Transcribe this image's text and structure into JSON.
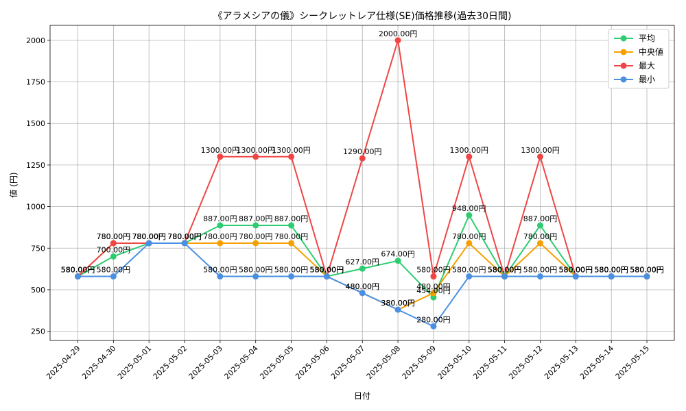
{
  "chart_data": {
    "type": "line",
    "title": "《アラメシアの儀》シークレットレア仕様(SE)価格推移(過去30日間)",
    "xlabel": "日付",
    "ylabel": "値 (円)",
    "categories": [
      "2025-04-29",
      "2025-04-30",
      "2025-05-01",
      "2025-05-02",
      "2025-05-03",
      "2025-05-04",
      "2025-05-05",
      "2025-05-06",
      "2025-05-07",
      "2025-05-08",
      "2025-05-09",
      "2025-05-10",
      "2025-05-11",
      "2025-05-12",
      "2025-05-13",
      "2025-05-14",
      "2025-05-15"
    ],
    "ylim": [
      195,
      2090
    ],
    "yticks": [
      250,
      500,
      750,
      1000,
      1250,
      1500,
      1750,
      2000
    ],
    "grid": true,
    "legend_position": "top-right",
    "series": [
      {
        "name": "平均",
        "color": "#2ecc71",
        "values": [
          580,
          700,
          780,
          780,
          887,
          887,
          887,
          580,
          627,
          674,
          454,
          948,
          580,
          887,
          580,
          580,
          580
        ],
        "labels": [
          "580.00円",
          "700.00円",
          "780.00円",
          "780.00円",
          "887.00円",
          "887.00円",
          "887.00円",
          "580.00円",
          "627.00円",
          "674.00円",
          "454.00円",
          "948.00円",
          "580.00円",
          "887.00円",
          "580.00円",
          "580.00円",
          "580.00円"
        ]
      },
      {
        "name": "中央値",
        "color": "#f5a000",
        "values": [
          580,
          780,
          780,
          780,
          780,
          780,
          780,
          580,
          480,
          380,
          480,
          780,
          580,
          780,
          580,
          580,
          580
        ],
        "labels": [
          "580.00円",
          "780.00円",
          "780.00円",
          "780.00円",
          "780.00円",
          "780.00円",
          "780.00円",
          "580.00円",
          "480.00円",
          "380.00円",
          "480.00円",
          "780.00円",
          "580.00円",
          "780.00円",
          "580.00円",
          "580.00円",
          "580.00円"
        ]
      },
      {
        "name": "最大",
        "color": "#f04545",
        "values": [
          580,
          780,
          780,
          780,
          1300,
          1300,
          1300,
          580,
          1290,
          2000,
          580,
          1300,
          580,
          1300,
          580,
          580,
          580
        ],
        "labels": [
          "580.00円",
          "780.00円",
          "780.00円",
          "780.00円",
          "1300.00円",
          "1300.00円",
          "1300.00円",
          "580.00円",
          "1290.00円",
          "2000.00円",
          "580.00円",
          "1300.00円",
          "580.00円",
          "1300.00円",
          "580.00円",
          "580.00円",
          "580.00円"
        ]
      },
      {
        "name": "最小",
        "color": "#4a90e2",
        "values": [
          580,
          580,
          780,
          780,
          580,
          580,
          580,
          580,
          480,
          380,
          280,
          580,
          580,
          580,
          580,
          580,
          580
        ],
        "labels": [
          "580.00円",
          "580.00円",
          "780.00円",
          "780.00円",
          "580.00円",
          "580.00円",
          "580.00円",
          "580.00円",
          "480.00円",
          "380.00円",
          "280.00円",
          "580.00円",
          "580.00円",
          "580.00円",
          "580.00円",
          "580.00円",
          "580.00円"
        ]
      }
    ]
  }
}
